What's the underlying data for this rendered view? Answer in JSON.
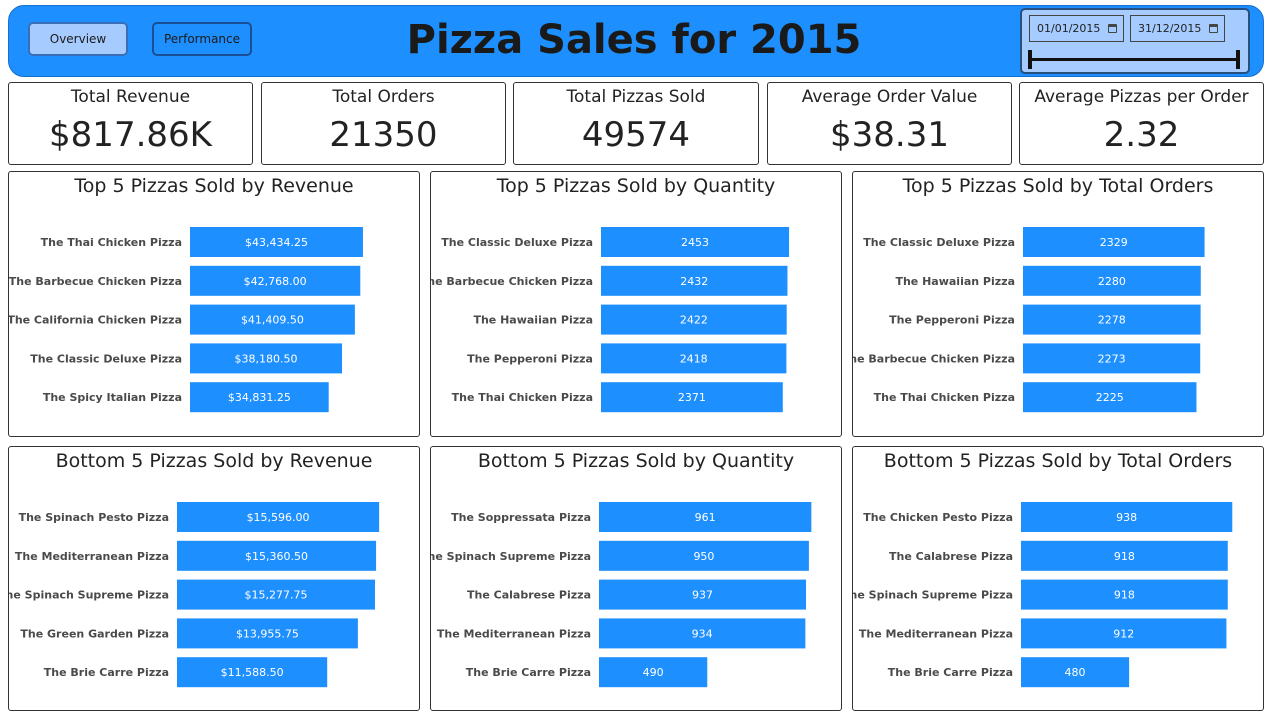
{
  "header": {
    "title": "Pizza Sales for 2015",
    "nav": {
      "overview_label": "Overview",
      "performance_label": "Performance"
    },
    "date_range": {
      "start": "01/01/2015",
      "end": "31/12/2015"
    }
  },
  "kpis": [
    {
      "label": "Total Revenue",
      "value": "$817.86K"
    },
    {
      "label": "Total Orders",
      "value": "21350"
    },
    {
      "label": "Total Pizzas Sold",
      "value": "49574"
    },
    {
      "label": "Average Order Value",
      "value": "$38.31"
    },
    {
      "label": "Average Pizzas per Order",
      "value": "2.32"
    }
  ],
  "colors": {
    "accent": "#1E8FFF",
    "header_button": "#a6cbff"
  },
  "chart_data": [
    {
      "type": "bar",
      "orientation": "horizontal",
      "title": "Top 5 Pizzas Sold by Revenue",
      "categories": [
        "The Thai Chicken Pizza",
        "The Barbecue Chicken Pizza",
        "The California Chicken Pizza",
        "The Classic Deluxe Pizza",
        "The Spicy Italian Pizza"
      ],
      "values": [
        43434.25,
        42768.0,
        41409.5,
        38180.5,
        34831.25
      ],
      "value_labels": [
        "$43,434.25",
        "$42,768.00",
        "$41,409.50",
        "$38,180.50",
        "$34,831.25"
      ]
    },
    {
      "type": "bar",
      "orientation": "horizontal",
      "title": "Top 5 Pizzas Sold by Quantity",
      "categories": [
        "The Classic Deluxe Pizza",
        "The Barbecue Chicken Pizza",
        "The Hawaiian Pizza",
        "The Pepperoni Pizza",
        "The Thai Chicken Pizza"
      ],
      "values": [
        2453,
        2432,
        2422,
        2418,
        2371
      ],
      "value_labels": [
        "2453",
        "2432",
        "2422",
        "2418",
        "2371"
      ]
    },
    {
      "type": "bar",
      "orientation": "horizontal",
      "title": "Top 5 Pizzas Sold by Total Orders",
      "categories": [
        "The Classic Deluxe Pizza",
        "The Hawaiian Pizza",
        "The Pepperoni Pizza",
        "The Barbecue Chicken Pizza",
        "The Thai Chicken Pizza"
      ],
      "values": [
        2329,
        2280,
        2278,
        2273,
        2225
      ],
      "value_labels": [
        "2329",
        "2280",
        "2278",
        "2273",
        "2225"
      ]
    },
    {
      "type": "bar",
      "orientation": "horizontal",
      "title": "Bottom 5 Pizzas Sold by Revenue",
      "categories": [
        "The Spinach Pesto Pizza",
        "The Mediterranean Pizza",
        "The Spinach Supreme Pizza",
        "The Green Garden Pizza",
        "The Brie Carre Pizza"
      ],
      "values": [
        15596.0,
        15360.5,
        15277.75,
        13955.75,
        11588.5
      ],
      "value_labels": [
        "$15,596.00",
        "$15,360.50",
        "$15,277.75",
        "$13,955.75",
        "$11,588.50"
      ]
    },
    {
      "type": "bar",
      "orientation": "horizontal",
      "title": "Bottom 5 Pizzas Sold by Quantity",
      "categories": [
        "The Soppressata Pizza",
        "The Spinach Supreme Pizza",
        "The Calabrese Pizza",
        "The Mediterranean Pizza",
        "The Brie Carre Pizza"
      ],
      "values": [
        961,
        950,
        937,
        934,
        490
      ],
      "value_labels": [
        "961",
        "950",
        "937",
        "934",
        "490"
      ]
    },
    {
      "type": "bar",
      "orientation": "horizontal",
      "title": "Bottom 5 Pizzas Sold by Total Orders",
      "categories": [
        "The Chicken Pesto Pizza",
        "The Calabrese Pizza",
        "The Spinach Supreme Pizza",
        "The Mediterranean Pizza",
        "The Brie Carre Pizza"
      ],
      "values": [
        938,
        918,
        918,
        912,
        480
      ],
      "value_labels": [
        "938",
        "918",
        "918",
        "912",
        "480"
      ]
    }
  ]
}
